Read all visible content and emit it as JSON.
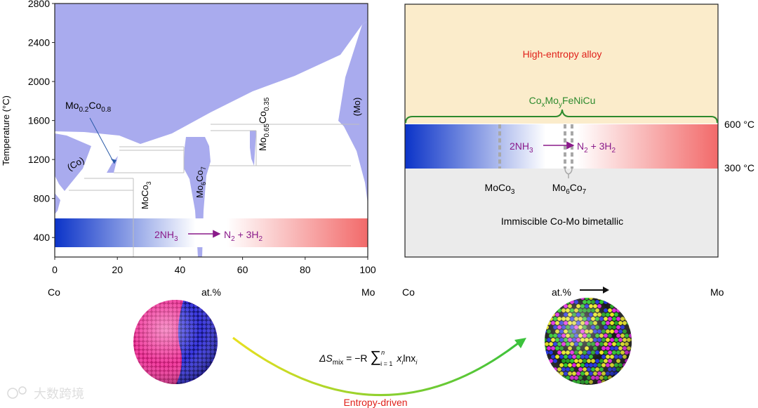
{
  "colors": {
    "phase_fill": "#a9abee",
    "hea_fill": "#fbeccb",
    "bimetal_fill": "#ebebeb",
    "gradient_blue": "#0b33c8",
    "gradient_red": "#f26a6a",
    "reaction_purple": "#8a1a8a",
    "hea_label_red": "#e0201a",
    "bracket_green": "#2d8a2d"
  },
  "chart_data": {
    "type": "phase-diagram",
    "ylabel": "Temperature (°C)",
    "ylim": [
      200,
      2800
    ],
    "xlim": [
      0,
      100
    ],
    "yticks": [
      "400",
      "800",
      "1200",
      "1600",
      "2000",
      "2400",
      "2800"
    ],
    "xticks": [
      "0",
      "20",
      "40",
      "60",
      "80",
      "100"
    ],
    "x_left_element": "Co",
    "x_right_element": "Mo",
    "x_axis_label": "at.%",
    "phases": {
      "co": "(Co)",
      "mo": "(Mo)",
      "mo02co08_main": "Mo",
      "mo02co08_sub1": "0.2",
      "mo02co08_mid": "Co",
      "mo02co08_sub2": "0.8",
      "moco3_main": "MoCo",
      "moco3_sub": "3",
      "mo6co7_main": "Mo",
      "mo6co7_sub1": "6",
      "mo6co7_mid": "Co",
      "mo6co7_sub2": "7",
      "mo065_main": "Mo",
      "mo065_sub1": "0.65",
      "mo065_mid": "Co",
      "mo065_sub2": "0.35"
    },
    "nh3_band_range": [
      300,
      600
    ]
  },
  "reaction": {
    "lhs_main": "2NH",
    "lhs_sub": "3",
    "rhs_a": "N",
    "rhs_a_sub": "2",
    "rhs_plus": " + 3H",
    "rhs_b_sub": "2"
  },
  "right_panel": {
    "hea_label": "High-entropy alloy",
    "formula_co": "Co",
    "formula_x": "x",
    "formula_mo": "Mo",
    "formula_y": "y",
    "formula_rest": "FeNiCu",
    "temp_high": "600 °C",
    "temp_low": "300 °C",
    "moco3_main": "MoCo",
    "moco3_sub": "3",
    "mo6co7_main": "Mo",
    "mo6co7_sub1": "6",
    "mo6co7_mid": "Co",
    "mo6co7_sub2": "7",
    "bimetal_label": "Immiscible Co-Mo bimetallic",
    "x_left_element": "Co",
    "x_right_element": "Mo",
    "x_axis_label": "at.%"
  },
  "bottom": {
    "entropy_label": "Entropy-driven",
    "eq_delta": "ΔS",
    "eq_mix": "mix",
    "eq_eq": " = −R ",
    "eq_sigma": "∑",
    "eq_upper": "n",
    "eq_lower": "i = 1",
    "eq_x": "x",
    "eq_i1": "i",
    "eq_ln": "lnx",
    "eq_i2": "i",
    "watermark": "大数跨境"
  }
}
